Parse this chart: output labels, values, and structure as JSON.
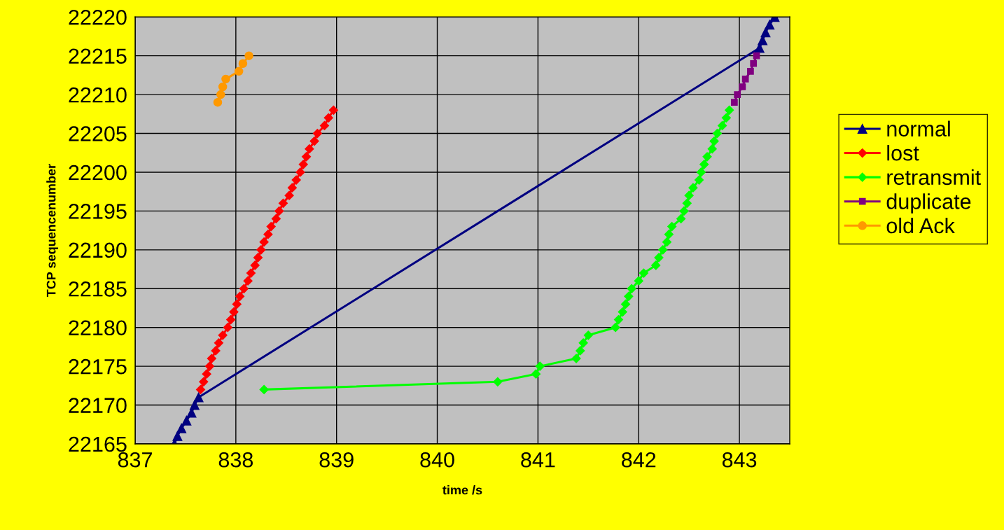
{
  "chart_data": {
    "type": "line",
    "xlabel": "time /s",
    "ylabel": "TCP sequencenumber",
    "xlim": [
      837,
      843.5
    ],
    "xticks": [
      837,
      838,
      839,
      840,
      841,
      842,
      843
    ],
    "ylim": [
      22165,
      22220
    ],
    "yticks": [
      22165,
      22170,
      22175,
      22180,
      22185,
      22190,
      22195,
      22200,
      22205,
      22210,
      22215,
      22220
    ],
    "grid": true,
    "legend": "right",
    "series": [
      {
        "name": "normal",
        "color": "#000080",
        "marker": "triangle",
        "x": [
          837.39,
          837.42,
          837.46,
          837.51,
          837.56,
          837.59,
          837.63,
          843.2,
          843.23,
          843.26,
          843.3,
          843.35
        ],
        "values": [
          22165,
          22166,
          22167,
          22168,
          22169,
          22170,
          22171,
          22216,
          22217,
          22218,
          22219,
          22220
        ]
      },
      {
        "name": "lost",
        "color": "#ff0000",
        "marker": "diamond",
        "x": [
          837.65,
          837.68,
          837.71,
          837.74,
          837.76,
          837.8,
          837.83,
          837.87,
          837.92,
          837.95,
          837.98,
          838.01,
          838.04,
          838.08,
          838.12,
          838.15,
          838.19,
          838.22,
          838.25,
          838.28,
          838.32,
          838.35,
          838.4,
          838.43,
          838.47,
          838.53,
          838.56,
          838.6,
          838.64,
          838.67,
          838.7,
          838.73,
          838.78,
          838.81,
          838.88,
          838.92,
          838.97
        ],
        "values": [
          22172,
          22173,
          22174,
          22175,
          22176,
          22177,
          22178,
          22179,
          22180,
          22181,
          22182,
          22183,
          22184,
          22185,
          22186,
          22187,
          22188,
          22189,
          22190,
          22191,
          22192,
          22193,
          22194,
          22195,
          22196,
          22197,
          22198,
          22199,
          22200,
          22201,
          22202,
          22203,
          22204,
          22205,
          22206,
          22207,
          22208
        ]
      },
      {
        "name": "retransmit",
        "color": "#00ff00",
        "marker": "diamond",
        "x": [
          838.28,
          840.6,
          840.98,
          841.02,
          841.38,
          841.42,
          841.45,
          841.5,
          841.77,
          841.8,
          841.84,
          841.87,
          841.9,
          841.93,
          842.0,
          842.05,
          842.17,
          842.2,
          842.24,
          842.28,
          842.3,
          842.33,
          842.42,
          842.45,
          842.48,
          842.5,
          842.54,
          842.6,
          842.62,
          842.65,
          842.68,
          842.73,
          842.75,
          842.78,
          842.83,
          842.87,
          842.9
        ],
        "values": [
          22172,
          22173,
          22174,
          22175,
          22176,
          22177,
          22178,
          22179,
          22180,
          22181,
          22182,
          22183,
          22184,
          22185,
          22186,
          22187,
          22188,
          22189,
          22190,
          22191,
          22192,
          22193,
          22194,
          22195,
          22196,
          22197,
          22198,
          22199,
          22200,
          22201,
          22202,
          22203,
          22204,
          22205,
          22206,
          22207,
          22208
        ]
      },
      {
        "name": "duplicate",
        "color": "#800080",
        "marker": "square",
        "x": [
          842.95,
          842.98,
          843.03,
          843.06,
          843.11,
          843.14,
          843.17
        ],
        "values": [
          22209,
          22210,
          22211,
          22212,
          22213,
          22214,
          22215
        ]
      },
      {
        "name": "old Ack",
        "color": "#ff9900",
        "marker": "circle",
        "x": [
          837.82,
          837.85,
          837.87,
          837.9,
          838.03,
          838.07,
          838.13
        ],
        "values": [
          22209,
          22210,
          22211,
          22212,
          22213,
          22214,
          22215
        ]
      }
    ]
  }
}
